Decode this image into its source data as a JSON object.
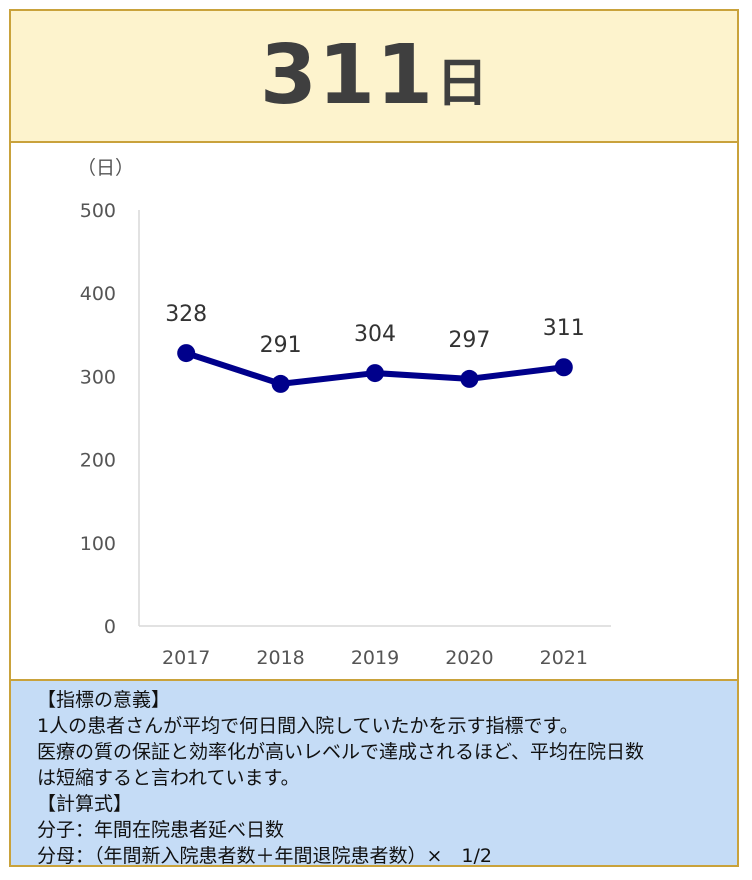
{
  "header": {
    "value": "311",
    "unit": "日"
  },
  "chart_data": {
    "type": "line",
    "categories": [
      "2017",
      "2018",
      "2019",
      "2020",
      "2021"
    ],
    "values": [
      328,
      291,
      304,
      297,
      311
    ],
    "data_labels": [
      "328",
      "291",
      "304",
      "297",
      "311"
    ],
    "ylabel": "（日）",
    "ylim": [
      0,
      500
    ],
    "yticks": [
      0,
      100,
      200,
      300,
      400,
      500
    ],
    "line_color": "#00008b",
    "grid": false,
    "legend": false
  },
  "info": {
    "heading": "【指標の意義】",
    "lines": [
      "1人の患者さんが平均で何日間入院していたかを示す指標です。",
      "医療の質の保証と効率化が高いレベルで達成されるほど、平均在院日数",
      "は短縮すると言われています。"
    ],
    "calc_heading": "【計算式】",
    "numerator": "分子：年間在院患者延べ日数",
    "denominator": "分母：（年間新入院患者数＋年間退院患者数）×　1/2"
  }
}
